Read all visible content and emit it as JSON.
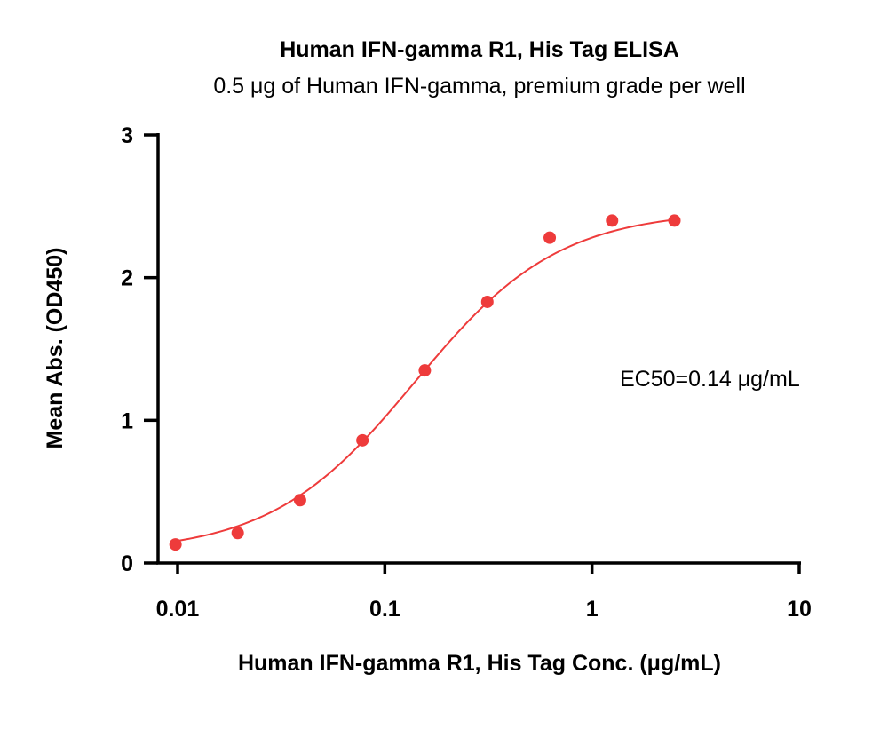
{
  "chart_data": {
    "type": "scatter",
    "title": "Human IFN-gamma R1, His Tag ELISA",
    "subtitle": "0.5 μg of Human IFN-gamma, premium grade per well",
    "xlabel": "Human IFN-gamma R1, His Tag Conc. (μg/mL)",
    "ylabel": "Mean Abs. (OD450)",
    "x_scale": "log",
    "xlim": [
      0.01,
      10
    ],
    "ylim": [
      0,
      3
    ],
    "x_ticks": [
      0.01,
      0.1,
      1,
      10
    ],
    "x_tick_labels": [
      "0.01",
      "0.1",
      "1",
      "10"
    ],
    "y_ticks": [
      0,
      1,
      2,
      3
    ],
    "y_tick_labels": [
      "0",
      "1",
      "2",
      "3"
    ],
    "grid": false,
    "annotation": "EC50=0.14 μg/mL",
    "series": [
      {
        "marker_color": "#ee3b3b",
        "x": [
          0.00977,
          0.0195,
          0.039,
          0.078,
          0.156,
          0.3125,
          0.625,
          1.25,
          2.5
        ],
        "y": [
          0.13,
          0.21,
          0.44,
          0.86,
          1.35,
          1.83,
          2.28,
          2.4,
          2.4
        ]
      }
    ],
    "fit_curve": {
      "color": "#ee3b3b",
      "model": "4PL",
      "bottom": 0.07,
      "top": 2.47,
      "ec50": 0.14,
      "hill": 1.25
    }
  }
}
